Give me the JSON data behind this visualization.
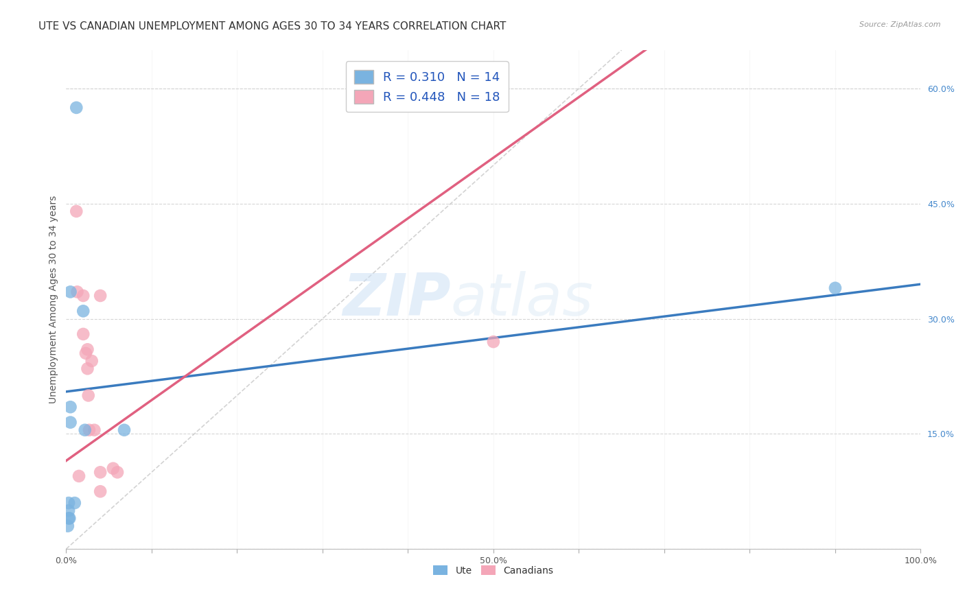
{
  "title": "UTE VS CANADIAN UNEMPLOYMENT AMONG AGES 30 TO 34 YEARS CORRELATION CHART",
  "source": "Source: ZipAtlas.com",
  "ylabel": "Unemployment Among Ages 30 to 34 years",
  "xlim": [
    0,
    1.0
  ],
  "ylim": [
    0,
    0.65
  ],
  "xticks": [
    0.0,
    0.1,
    0.2,
    0.3,
    0.4,
    0.5,
    0.6,
    0.7,
    0.8,
    0.9,
    1.0
  ],
  "xticklabels": [
    "0.0%",
    "",
    "",
    "",
    "",
    "50.0%",
    "",
    "",
    "",
    "",
    "100.0%"
  ],
  "yticks_right": [
    0.15,
    0.3,
    0.45,
    0.6
  ],
  "yticklabels_right": [
    "15.0%",
    "30.0%",
    "45.0%",
    "60.0%"
  ],
  "watermark_zip": "ZIP",
  "watermark_atlas": "atlas",
  "ute_color": "#7ab3e0",
  "canadian_color": "#f4a6b8",
  "ute_line_color": "#3a7bbf",
  "canadian_line_color": "#e06080",
  "trendline_ref_color": "#c8c8c8",
  "legend_label_ute": "R = 0.310   N = 14",
  "legend_label_can": "R = 0.448   N = 18",
  "ute_x": [
    0.012,
    0.005,
    0.02,
    0.005,
    0.005,
    0.003,
    0.003,
    0.003,
    0.004,
    0.002,
    0.01,
    0.022,
    0.068,
    0.9
  ],
  "ute_y": [
    0.575,
    0.335,
    0.31,
    0.185,
    0.165,
    0.06,
    0.05,
    0.04,
    0.04,
    0.03,
    0.06,
    0.155,
    0.155,
    0.34
  ],
  "can_x": [
    0.012,
    0.013,
    0.02,
    0.02,
    0.023,
    0.025,
    0.025,
    0.026,
    0.027,
    0.03,
    0.033,
    0.04,
    0.04,
    0.055,
    0.06,
    0.5,
    0.015,
    0.04
  ],
  "can_y": [
    0.44,
    0.335,
    0.33,
    0.28,
    0.255,
    0.26,
    0.235,
    0.2,
    0.155,
    0.245,
    0.155,
    0.1,
    0.33,
    0.105,
    0.1,
    0.27,
    0.095,
    0.075
  ],
  "ute_trendline_x": [
    0.0,
    1.0
  ],
  "ute_trendline_y": [
    0.205,
    0.345
  ],
  "can_trendline_x": [
    0.0,
    0.38
  ],
  "can_trendline_y": [
    0.115,
    0.415
  ],
  "ref_line_x": [
    0.0,
    0.65
  ],
  "ref_line_y": [
    0.0,
    0.65
  ],
  "background_color": "#ffffff",
  "grid_color": "#d5d5d5",
  "title_fontsize": 11,
  "axis_label_fontsize": 10,
  "tick_fontsize": 9,
  "legend_fontsize": 13,
  "source_fontsize": 8
}
